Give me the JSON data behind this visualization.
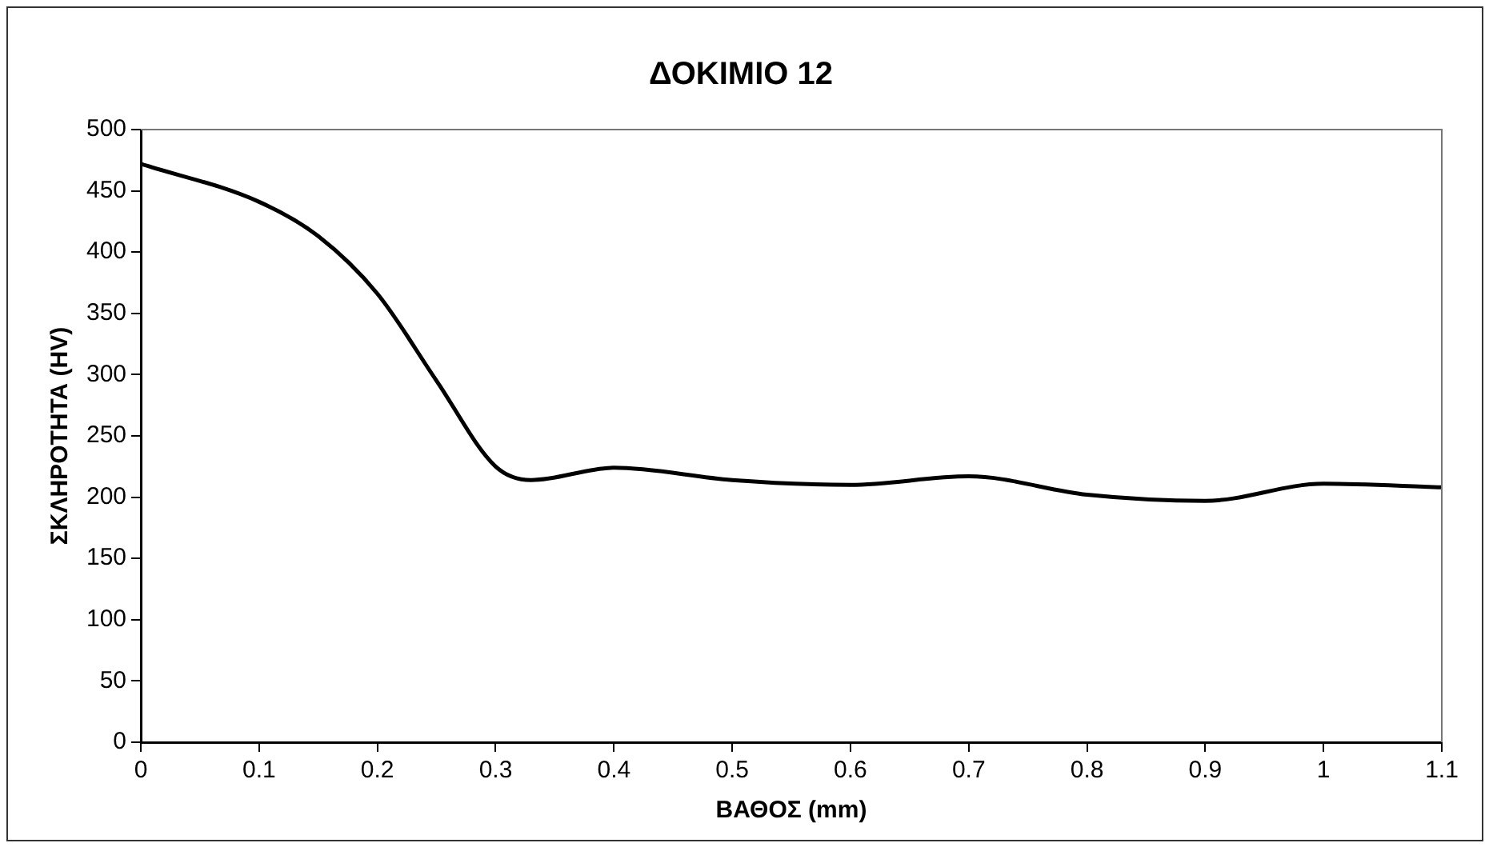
{
  "chart_data": {
    "type": "line",
    "title": "ΔΟΚΙΜΙΟ 12",
    "xlabel": "ΒΑΘΟΣ (mm)",
    "ylabel": "ΣΚΛΗΡΟΤΗΤΑ (HV)",
    "x": [
      0,
      0.1,
      0.15,
      0.2,
      0.25,
      0.3,
      0.33,
      0.4,
      0.5,
      0.6,
      0.7,
      0.8,
      0.9,
      1.0,
      1.1
    ],
    "series": [
      {
        "color": "#000000",
        "values": [
          472,
          441,
          413,
          366,
          295,
          225,
          214,
          224,
          214,
          210,
          217,
          202,
          197,
          211,
          208
        ]
      }
    ],
    "xlim": [
      0,
      1.1
    ],
    "xticks": [
      0,
      0.1,
      0.2,
      0.3,
      0.4,
      0.5,
      0.6,
      0.7,
      0.8,
      0.9,
      1,
      1.1
    ],
    "ylim": [
      0,
      500
    ],
    "yticks": [
      0,
      50,
      100,
      150,
      200,
      250,
      300,
      350,
      400,
      450,
      500
    ],
    "grid": false,
    "legend": false,
    "marker": "none",
    "line_style": "solid"
  }
}
